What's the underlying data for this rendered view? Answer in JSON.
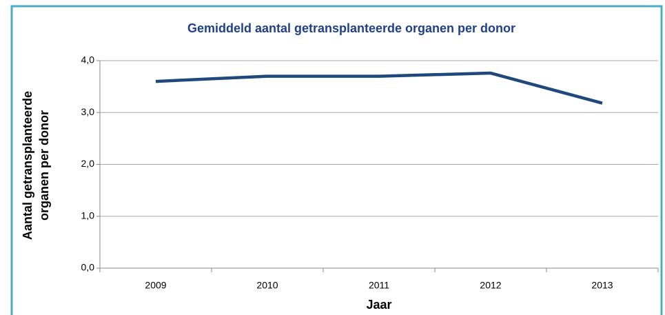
{
  "chart_data": {
    "type": "line",
    "title": "Gemiddeld aantal getransplanteerde organen per donor",
    "x_label": "Jaar",
    "y_label": [
      "Aantal getransplanteerde",
      "organen per donor"
    ],
    "categories": [
      "2009",
      "2010",
      "2011",
      "2012",
      "2013"
    ],
    "series": [
      {
        "name": "Gemiddeld aantal getransplanteerde organen per donor",
        "color": "#1f497d",
        "values": [
          3.6,
          3.7,
          3.7,
          3.76,
          3.18
        ]
      }
    ],
    "ylim": [
      0,
      4
    ],
    "yticks": [
      {
        "value": 0,
        "label": "0,0"
      },
      {
        "value": 1,
        "label": "1,0"
      },
      {
        "value": 2,
        "label": "2,0"
      },
      {
        "value": 3,
        "label": "3,0"
      },
      {
        "value": 4,
        "label": "4,0"
      }
    ],
    "grid": true,
    "legend": false
  }
}
